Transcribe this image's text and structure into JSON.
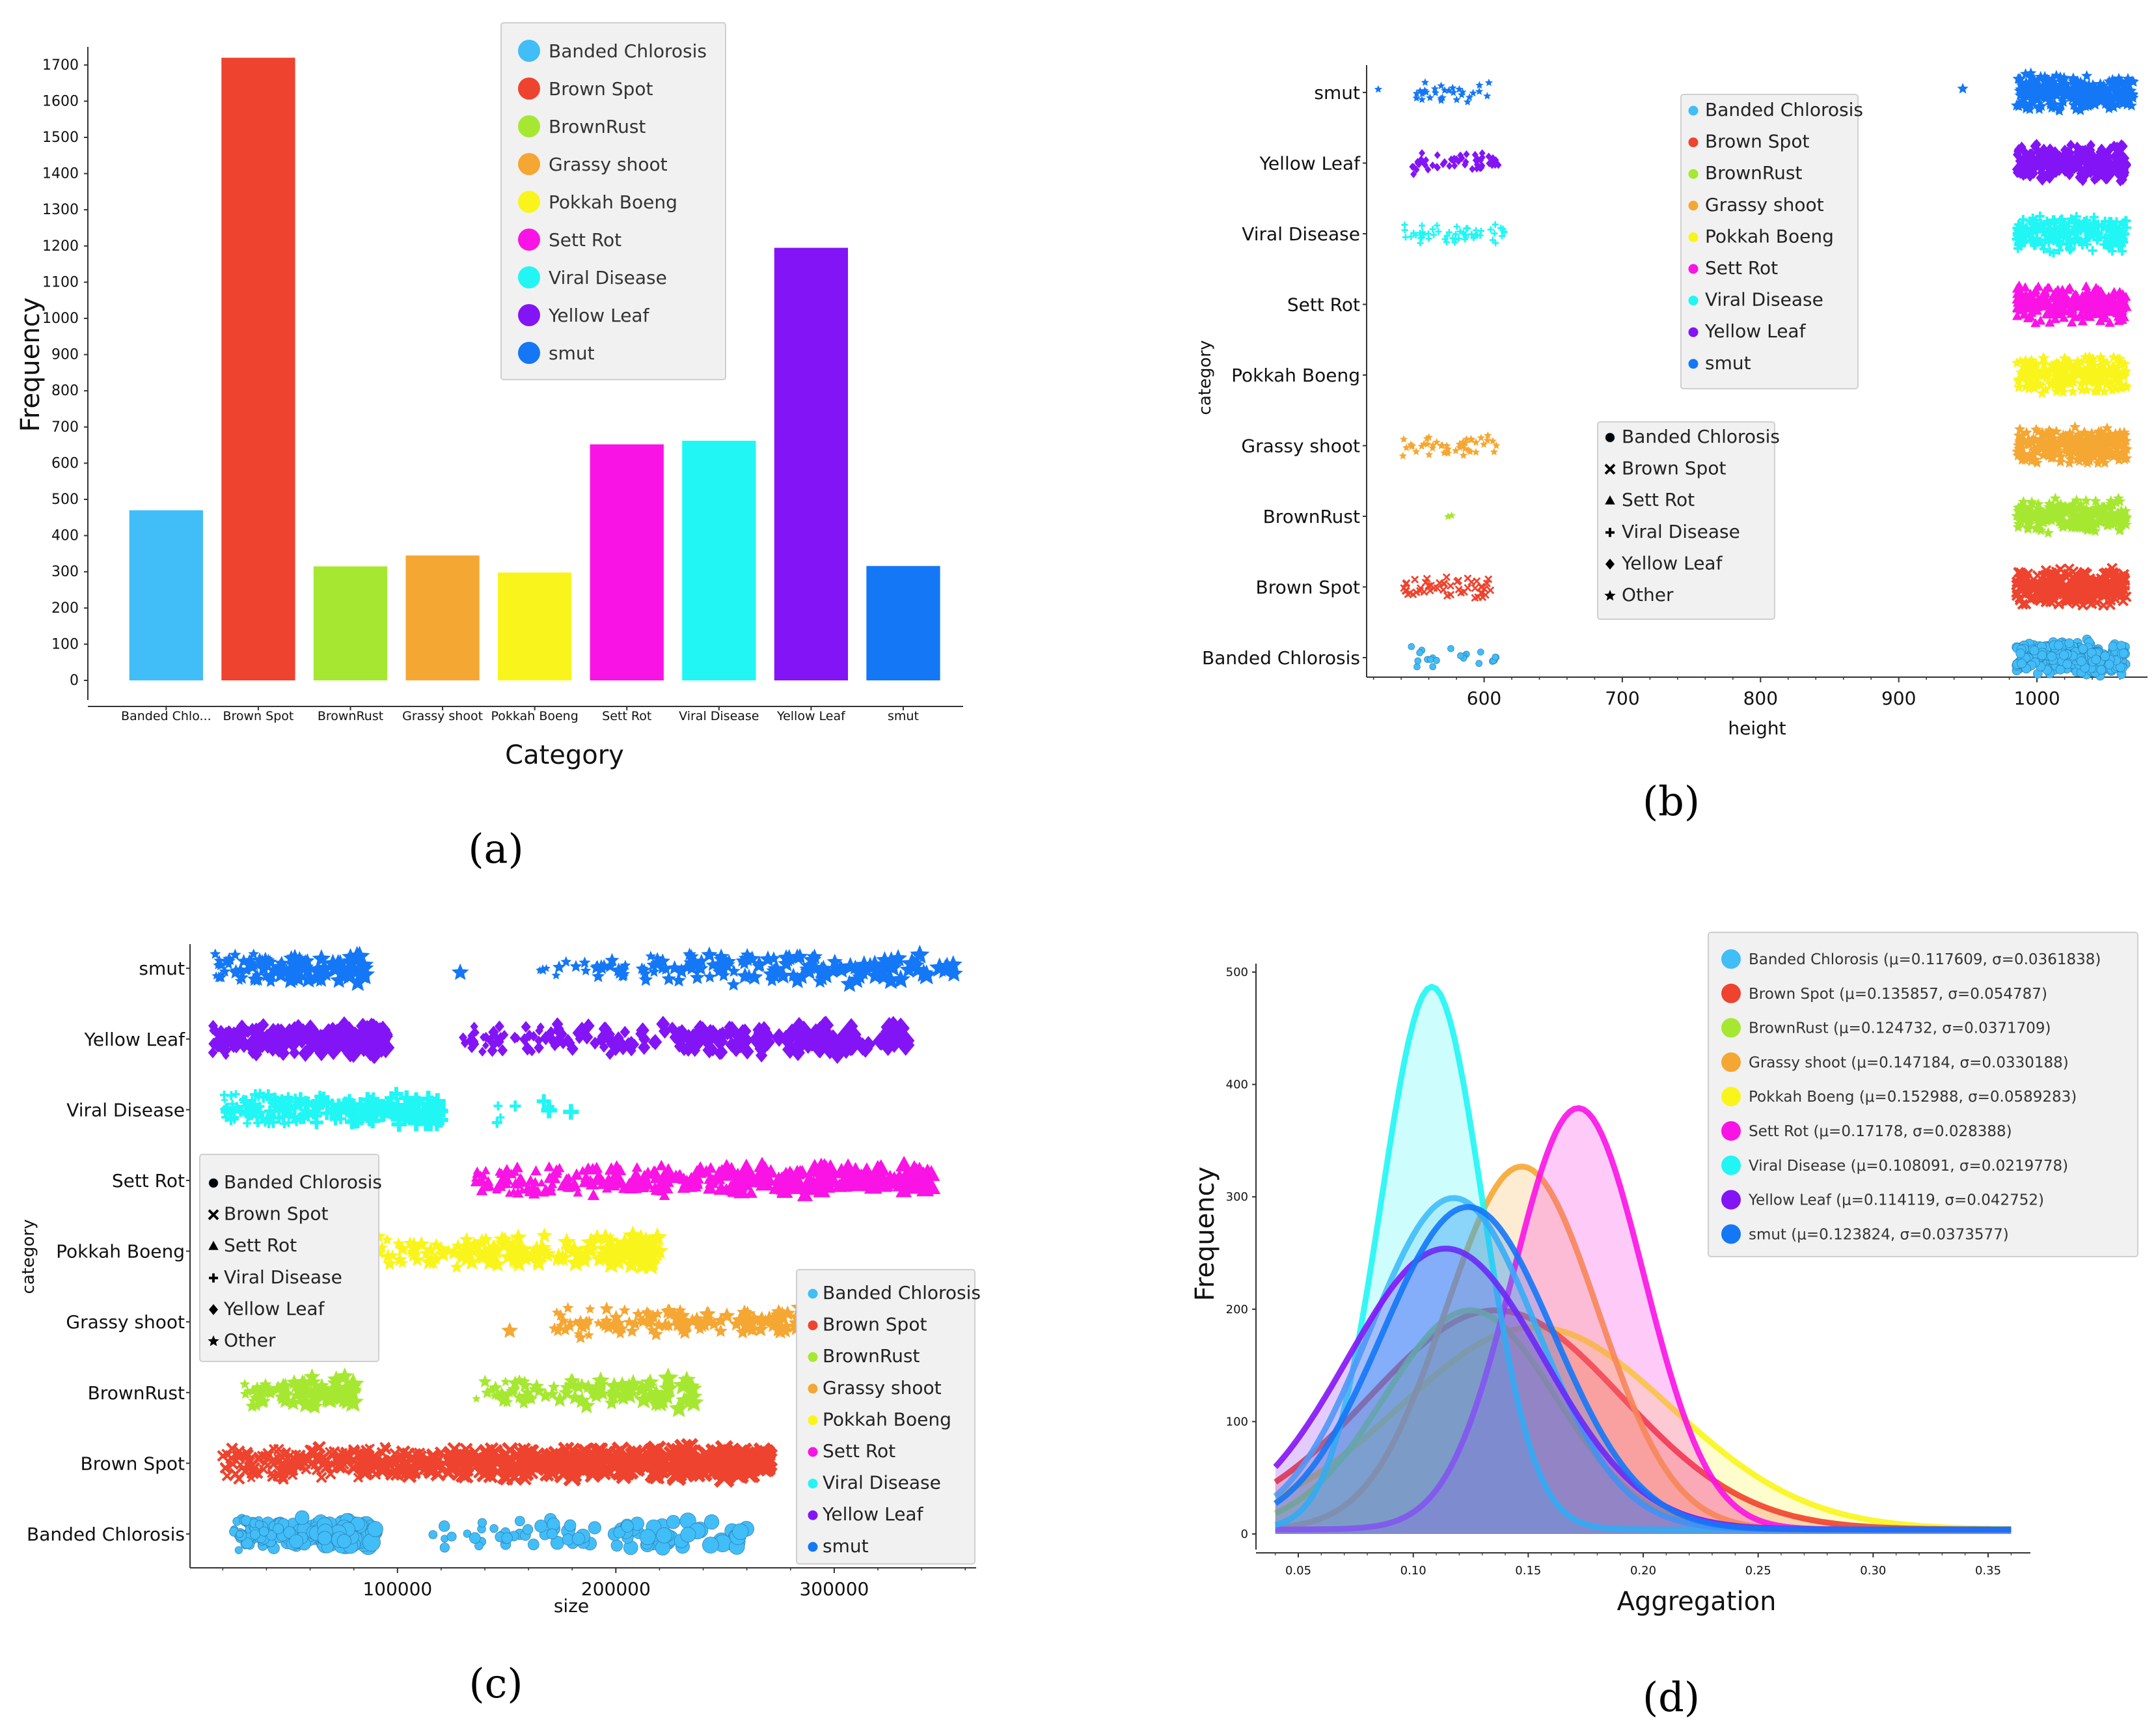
{
  "colors": {
    "Banded Chlorosis": "#41bdf8",
    "Brown Spot": "#ee432e",
    "BrownRust": "#a6e831",
    "Grassy shoot": "#f5a733",
    "Pokkah Boeng": "#f9f51c",
    "Sett Rot": "#fa13e5",
    "Viral Disease": "#21f6f4",
    "Yellow Leaf": "#8314f6",
    "smut": "#1477f6"
  },
  "panel_labels": [
    "(a)",
    "(b)",
    "(c)",
    "(d)"
  ],
  "chart_data": [
    {
      "id": "a",
      "type": "bar",
      "categories": [
        "Banded Chlorosis",
        "Brown Spot",
        "BrownRust",
        "Grassy shoot",
        "Pokkah Boeng",
        "Sett Rot",
        "Viral Disease",
        "Yellow Leaf",
        "smut"
      ],
      "category_tick_labels": [
        "Banded Chlo...",
        "Brown Spot",
        "BrownRust",
        "Grassy shoot",
        "Pokkah Boeng",
        "Sett Rot",
        "Viral Disease",
        "Yellow Leaf",
        "smut"
      ],
      "values": [
        470,
        1720,
        315,
        345,
        298,
        652,
        662,
        1195,
        316
      ],
      "xlabel": "Category",
      "ylabel": "Frequency",
      "ylim": [
        0,
        1750
      ],
      "yticks": [
        0,
        100,
        200,
        300,
        400,
        500,
        600,
        700,
        800,
        900,
        1000,
        1100,
        1200,
        1300,
        1400,
        1500,
        1600,
        1700
      ],
      "legend": [
        "Banded Chlorosis",
        "Brown Spot",
        "BrownRust",
        "Grassy shoot",
        "Pokkah Boeng",
        "Sett Rot",
        "Viral Disease",
        "Yellow Leaf",
        "smut"
      ],
      "legend_position": "top-right"
    },
    {
      "id": "b",
      "type": "scatter",
      "xlabel": "height",
      "ylabel": "category",
      "xlim": [
        515,
        1080
      ],
      "xticks": [
        600,
        700,
        800,
        900,
        1000
      ],
      "categories": [
        "Banded Chlorosis",
        "Brown Spot",
        "BrownRust",
        "Grassy shoot",
        "Pokkah Boeng",
        "Sett Rot",
        "Viral Disease",
        "Yellow Leaf",
        "smut"
      ],
      "clusters": [
        {
          "category": "Banded Chlorosis",
          "x_range": [
            545,
            612
          ],
          "count": 22,
          "marker": "circle"
        },
        {
          "category": "Banded Chlorosis",
          "x_range": [
            985,
            1065
          ],
          "count": 300,
          "marker": "circle"
        },
        {
          "category": "Brown Spot",
          "x_range": [
            542,
            605
          ],
          "count": 50,
          "marker": "x"
        },
        {
          "category": "Brown Spot",
          "x_range": [
            985,
            1065
          ],
          "count": 300,
          "marker": "x"
        },
        {
          "category": "BrownRust",
          "x_range": [
            570,
            580
          ],
          "count": 2,
          "marker": "star"
        },
        {
          "category": "BrownRust",
          "x_range": [
            985,
            1065
          ],
          "count": 260,
          "marker": "star"
        },
        {
          "category": "Grassy shoot",
          "x_range": [
            540,
            612
          ],
          "count": 45,
          "marker": "star"
        },
        {
          "category": "Grassy shoot",
          "x_range": [
            985,
            1065
          ],
          "count": 260,
          "marker": "star"
        },
        {
          "category": "Pokkah Boeng",
          "x_range": [
            985,
            1065
          ],
          "count": 260,
          "marker": "star"
        },
        {
          "category": "Sett Rot",
          "x_range": [
            985,
            1065
          ],
          "count": 300,
          "marker": "triangle"
        },
        {
          "category": "Viral Disease",
          "x_range": [
            542,
            615
          ],
          "count": 55,
          "marker": "plus"
        },
        {
          "category": "Viral Disease",
          "x_range": [
            985,
            1065
          ],
          "count": 260,
          "marker": "plus"
        },
        {
          "category": "Yellow Leaf",
          "x_range": [
            545,
            612
          ],
          "count": 55,
          "marker": "diamond"
        },
        {
          "category": "Yellow Leaf",
          "x_range": [
            985,
            1065
          ],
          "count": 300,
          "marker": "diamond"
        },
        {
          "category": "smut",
          "x_range": [
            545,
            605
          ],
          "count": 30,
          "marker": "star"
        },
        {
          "category": "smut",
          "x_range": [
            985,
            1070
          ],
          "count": 300,
          "marker": "star"
        },
        {
          "category": "smut",
          "x_range": [
            522,
            524
          ],
          "count": 1,
          "marker": "star"
        },
        {
          "category": "smut",
          "x_range": [
            946,
            948
          ],
          "count": 1,
          "marker": "star"
        }
      ],
      "color_legend": [
        "Banded Chlorosis",
        "Brown Spot",
        "BrownRust",
        "Grassy shoot",
        "Pokkah Boeng",
        "Sett Rot",
        "Viral Disease",
        "Yellow Leaf",
        "smut"
      ],
      "shape_legend": [
        {
          "marker": "circle",
          "label": "Banded Chlorosis"
        },
        {
          "marker": "x",
          "label": "Brown Spot"
        },
        {
          "marker": "triangle",
          "label": "Sett Rot"
        },
        {
          "marker": "plus",
          "label": "Viral Disease"
        },
        {
          "marker": "diamond",
          "label": "Yellow Leaf"
        },
        {
          "marker": "star",
          "label": "Other"
        }
      ]
    },
    {
      "id": "c",
      "type": "scatter",
      "xlabel": "size",
      "ylabel": "category",
      "xlim": [
        5000,
        365000
      ],
      "xticks": [
        100000,
        200000,
        300000
      ],
      "categories": [
        "Banded Chlorosis",
        "Brown Spot",
        "BrownRust",
        "Grassy shoot",
        "Pokkah Boeng",
        "Sett Rot",
        "Viral Disease",
        "Yellow Leaf",
        "smut"
      ],
      "clusters": [
        {
          "category": "Banded Chlorosis",
          "x_range": [
            25000,
            90000
          ],
          "count": 200,
          "marker": "circle"
        },
        {
          "category": "Banded Chlorosis",
          "x_range": [
            110000,
            260000
          ],
          "count": 90,
          "marker": "circle"
        },
        {
          "category": "Brown Spot",
          "x_range": [
            20000,
            270000
          ],
          "count": 600,
          "marker": "x"
        },
        {
          "category": "BrownRust",
          "x_range": [
            30000,
            80000
          ],
          "count": 90,
          "marker": "star"
        },
        {
          "category": "BrownRust",
          "x_range": [
            130000,
            240000
          ],
          "count": 90,
          "marker": "star"
        },
        {
          "category": "Grassy shoot",
          "x_range": [
            170000,
            345000
          ],
          "count": 200,
          "marker": "star"
        },
        {
          "category": "Grassy shoot",
          "x_range": [
            150000,
            152000
          ],
          "count": 1,
          "marker": "star"
        },
        {
          "category": "Pokkah Boeng",
          "x_range": [
            35000,
            220000
          ],
          "count": 200,
          "marker": "star"
        },
        {
          "category": "Sett Rot",
          "x_range": [
            135000,
            345000
          ],
          "count": 350,
          "marker": "triangle"
        },
        {
          "category": "Viral Disease",
          "x_range": [
            20000,
            120000
          ],
          "count": 250,
          "marker": "plus"
        },
        {
          "category": "Viral Disease",
          "x_range": [
            140000,
            180000
          ],
          "count": 8,
          "marker": "plus"
        },
        {
          "category": "Yellow Leaf",
          "x_range": [
            15000,
            95000
          ],
          "count": 250,
          "marker": "diamond"
        },
        {
          "category": "Yellow Leaf",
          "x_range": [
            130000,
            335000
          ],
          "count": 220,
          "marker": "diamond"
        },
        {
          "category": "smut",
          "x_range": [
            15000,
            85000
          ],
          "count": 100,
          "marker": "star"
        },
        {
          "category": "smut",
          "x_range": [
            165000,
            355000
          ],
          "count": 150,
          "marker": "star"
        },
        {
          "category": "smut",
          "x_range": [
            127000,
            129000
          ],
          "count": 1,
          "marker": "star"
        }
      ],
      "color_legend": [
        "Banded Chlorosis",
        "Brown Spot",
        "BrownRust",
        "Grassy shoot",
        "Pokkah Boeng",
        "Sett Rot",
        "Viral Disease",
        "Yellow Leaf",
        "smut"
      ],
      "shape_legend": [
        {
          "marker": "circle",
          "label": "Banded Chlorosis"
        },
        {
          "marker": "x",
          "label": "Brown Spot"
        },
        {
          "marker": "triangle",
          "label": "Sett Rot"
        },
        {
          "marker": "plus",
          "label": "Viral Disease"
        },
        {
          "marker": "diamond",
          "label": "Yellow Leaf"
        },
        {
          "marker": "star",
          "label": "Other"
        }
      ]
    },
    {
      "id": "d",
      "type": "area",
      "xlabel": "Aggregation",
      "ylabel": "Frequency",
      "xlim": [
        0.04,
        0.36
      ],
      "ylim": [
        0,
        500
      ],
      "xticks": [
        0.05,
        0.1,
        0.15,
        0.2,
        0.25,
        0.3,
        0.35
      ],
      "yticks": [
        0,
        100,
        200,
        300,
        400,
        500
      ],
      "series": [
        {
          "name": "Banded Chlorosis",
          "mu": 0.117609,
          "sigma": 0.0361838,
          "peak": 295,
          "label": "Banded Chlorosis (μ=0.117609, σ=0.0361838)"
        },
        {
          "name": "Brown Spot",
          "mu": 0.135857,
          "sigma": 0.054787,
          "peak": 195,
          "label": "Brown Spot (μ=0.135857, σ=0.054787)"
        },
        {
          "name": "BrownRust",
          "mu": 0.124732,
          "sigma": 0.0371709,
          "peak": 195,
          "label": "BrownRust (μ=0.124732, σ=0.0371709)"
        },
        {
          "name": "Grassy shoot",
          "mu": 0.147184,
          "sigma": 0.0330188,
          "peak": 323,
          "label": "Grassy shoot (μ=0.147184, σ=0.0330188)"
        },
        {
          "name": "Pokkah Boeng",
          "mu": 0.152988,
          "sigma": 0.0589283,
          "peak": 180,
          "label": "Pokkah Boeng (μ=0.152988, σ=0.0589283)"
        },
        {
          "name": "Sett Rot",
          "mu": 0.17178,
          "sigma": 0.028388,
          "peak": 375,
          "label": "Sett Rot (μ=0.17178, σ=0.028388)"
        },
        {
          "name": "Viral Disease",
          "mu": 0.108091,
          "sigma": 0.0219778,
          "peak": 483,
          "label": "Viral Disease (μ=0.108091, σ=0.0219778)"
        },
        {
          "name": "Yellow Leaf",
          "mu": 0.114119,
          "sigma": 0.042752,
          "peak": 250,
          "label": "Yellow Leaf (μ=0.114119, σ=0.042752)"
        },
        {
          "name": "smut",
          "mu": 0.123824,
          "sigma": 0.0373577,
          "peak": 287,
          "label": "smut (μ=0.123824, σ=0.0373577)"
        }
      ],
      "legend_position": "top-right"
    }
  ]
}
